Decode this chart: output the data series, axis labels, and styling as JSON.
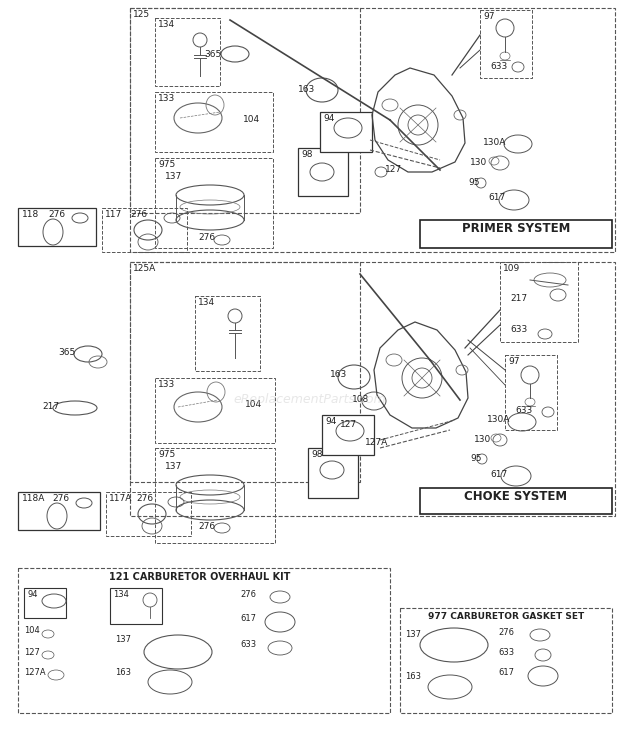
{
  "bg": "#ffffff",
  "primer_label": "PRIMER SYSTEM",
  "choke_label": "CHOKE SYSTEM",
  "overhaul_label": "121 CARBURETOR OVERHAUL KIT",
  "gasket_label": "977 CARBURETOR GASKET SET",
  "watermark": "eReplacementParts.com",
  "text_color": "#222222",
  "line_color": "#444444",
  "dash_color": "#555555"
}
